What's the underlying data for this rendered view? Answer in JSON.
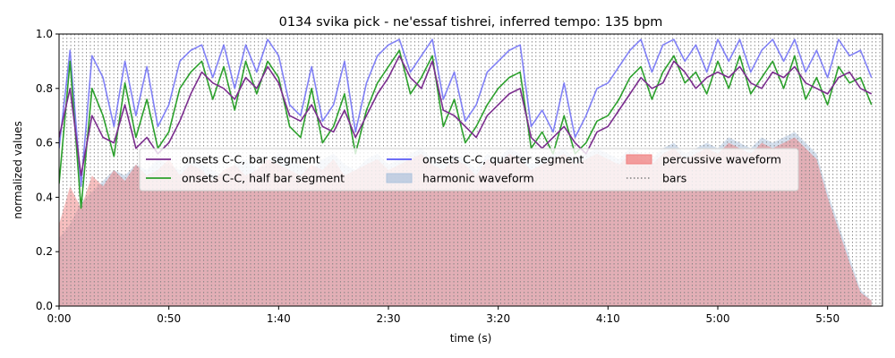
{
  "chart_data": {
    "type": "line",
    "title": "0134 svika pick - ne'essaf tishrei, inferred tempo: 135 bpm",
    "xlabel": "time (s)",
    "ylabel": "normalized values",
    "xlim": [
      0,
      375
    ],
    "ylim": [
      0,
      1.0
    ],
    "x_ticks": [
      0,
      50,
      100,
      150,
      200,
      250,
      300,
      350
    ],
    "x_tick_labels": [
      "0:00",
      "0:50",
      "1:40",
      "2:30",
      "3:20",
      "4:10",
      "5:00",
      "5:50"
    ],
    "y_ticks": [
      0,
      0.2,
      0.4,
      0.6,
      0.8,
      1.0
    ],
    "y_tick_labels": [
      "0.0",
      "0.2",
      "0.4",
      "0.6",
      "0.8",
      "1.0"
    ],
    "tempo_bpm": 135,
    "bar_period_s": 1.78,
    "legend_position": "center",
    "colors": {
      "bar_segment": "#7b2d8e",
      "half_bar_segment": "#2ca02c",
      "quarter_segment": "#5a5af5",
      "harmonic_fill": "#b0c4de",
      "percussive_fill": "#f08080",
      "bars": "#808080"
    },
    "series": [
      {
        "name": "onsets C-C, bar segment",
        "x": [
          0,
          5,
          10,
          15,
          20,
          25,
          30,
          35,
          40,
          45,
          50,
          55,
          60,
          65,
          70,
          75,
          80,
          85,
          90,
          95,
          100,
          105,
          110,
          115,
          120,
          125,
          130,
          135,
          140,
          145,
          150,
          155,
          160,
          165,
          170,
          175,
          180,
          185,
          190,
          195,
          200,
          205,
          210,
          215,
          220,
          225,
          230,
          235,
          240,
          245,
          250,
          255,
          260,
          265,
          270,
          275,
          280,
          285,
          290,
          295,
          300,
          305,
          310,
          315,
          320,
          325,
          330,
          335,
          340,
          345,
          350,
          355,
          360,
          365,
          370
        ],
        "values": [
          0.62,
          0.8,
          0.48,
          0.7,
          0.62,
          0.6,
          0.74,
          0.58,
          0.62,
          0.56,
          0.6,
          0.68,
          0.78,
          0.86,
          0.82,
          0.8,
          0.76,
          0.84,
          0.8,
          0.88,
          0.82,
          0.7,
          0.68,
          0.74,
          0.66,
          0.64,
          0.72,
          0.62,
          0.7,
          0.78,
          0.84,
          0.92,
          0.84,
          0.8,
          0.9,
          0.72,
          0.7,
          0.66,
          0.62,
          0.7,
          0.74,
          0.78,
          0.8,
          0.62,
          0.58,
          0.62,
          0.66,
          0.6,
          0.56,
          0.64,
          0.66,
          0.72,
          0.78,
          0.84,
          0.8,
          0.82,
          0.9,
          0.86,
          0.8,
          0.84,
          0.86,
          0.84,
          0.88,
          0.82,
          0.8,
          0.86,
          0.84,
          0.88,
          0.82,
          0.8,
          0.78,
          0.84,
          0.86,
          0.8,
          0.78
        ]
      },
      {
        "name": "onsets C-C, half bar segment",
        "x": [
          0,
          5,
          10,
          15,
          20,
          25,
          30,
          35,
          40,
          45,
          50,
          55,
          60,
          65,
          70,
          75,
          80,
          85,
          90,
          95,
          100,
          105,
          110,
          115,
          120,
          125,
          130,
          135,
          140,
          145,
          150,
          155,
          160,
          165,
          170,
          175,
          180,
          185,
          190,
          195,
          200,
          205,
          210,
          215,
          220,
          225,
          230,
          235,
          240,
          245,
          250,
          255,
          260,
          265,
          270,
          275,
          280,
          285,
          290,
          295,
          300,
          305,
          310,
          315,
          320,
          325,
          330,
          335,
          340,
          345,
          350,
          355,
          360,
          365,
          370
        ],
        "values": [
          0.45,
          0.9,
          0.36,
          0.8,
          0.7,
          0.55,
          0.82,
          0.62,
          0.76,
          0.58,
          0.64,
          0.8,
          0.86,
          0.9,
          0.76,
          0.88,
          0.72,
          0.9,
          0.78,
          0.9,
          0.84,
          0.66,
          0.62,
          0.8,
          0.6,
          0.66,
          0.78,
          0.56,
          0.72,
          0.82,
          0.88,
          0.94,
          0.78,
          0.84,
          0.92,
          0.66,
          0.76,
          0.6,
          0.66,
          0.74,
          0.8,
          0.84,
          0.86,
          0.58,
          0.64,
          0.56,
          0.7,
          0.56,
          0.6,
          0.68,
          0.7,
          0.76,
          0.84,
          0.88,
          0.76,
          0.86,
          0.92,
          0.82,
          0.86,
          0.78,
          0.9,
          0.8,
          0.92,
          0.78,
          0.84,
          0.9,
          0.8,
          0.92,
          0.76,
          0.84,
          0.74,
          0.88,
          0.82,
          0.84,
          0.74
        ]
      },
      {
        "name": "onsets C-C, quarter segment",
        "x": [
          0,
          5,
          10,
          15,
          20,
          25,
          30,
          35,
          40,
          45,
          50,
          55,
          60,
          65,
          70,
          75,
          80,
          85,
          90,
          95,
          100,
          105,
          110,
          115,
          120,
          125,
          130,
          135,
          140,
          145,
          150,
          155,
          160,
          165,
          170,
          175,
          180,
          185,
          190,
          195,
          200,
          205,
          210,
          215,
          220,
          225,
          230,
          235,
          240,
          245,
          250,
          255,
          260,
          265,
          270,
          275,
          280,
          285,
          290,
          295,
          300,
          305,
          310,
          315,
          320,
          325,
          330,
          335,
          340,
          345,
          350,
          355,
          360,
          365,
          370
        ],
        "values": [
          0.58,
          0.94,
          0.44,
          0.92,
          0.84,
          0.66,
          0.9,
          0.7,
          0.88,
          0.66,
          0.74,
          0.9,
          0.94,
          0.96,
          0.84,
          0.96,
          0.8,
          0.96,
          0.86,
          0.98,
          0.92,
          0.74,
          0.7,
          0.88,
          0.68,
          0.74,
          0.9,
          0.64,
          0.82,
          0.92,
          0.96,
          0.98,
          0.86,
          0.92,
          0.98,
          0.76,
          0.86,
          0.68,
          0.74,
          0.86,
          0.9,
          0.94,
          0.96,
          0.66,
          0.72,
          0.64,
          0.82,
          0.62,
          0.7,
          0.8,
          0.82,
          0.88,
          0.94,
          0.98,
          0.86,
          0.96,
          0.98,
          0.9,
          0.96,
          0.86,
          0.98,
          0.9,
          0.98,
          0.86,
          0.94,
          0.98,
          0.9,
          0.98,
          0.86,
          0.94,
          0.84,
          0.98,
          0.92,
          0.94,
          0.84
        ]
      },
      {
        "name": "harmonic waveform",
        "x": [
          0,
          5,
          10,
          15,
          20,
          25,
          30,
          35,
          40,
          45,
          50,
          55,
          60,
          65,
          70,
          75,
          80,
          85,
          90,
          95,
          100,
          105,
          110,
          115,
          120,
          125,
          130,
          135,
          140,
          145,
          150,
          155,
          160,
          165,
          170,
          175,
          180,
          185,
          190,
          195,
          200,
          205,
          210,
          215,
          220,
          225,
          230,
          235,
          240,
          245,
          250,
          255,
          260,
          265,
          270,
          275,
          280,
          285,
          290,
          295,
          300,
          305,
          310,
          315,
          320,
          325,
          330,
          335,
          340,
          345,
          350,
          355,
          360,
          365,
          370
        ],
        "values": [
          0.25,
          0.3,
          0.38,
          0.42,
          0.46,
          0.5,
          0.48,
          0.52,
          0.5,
          0.54,
          0.52,
          0.5,
          0.54,
          0.52,
          0.5,
          0.48,
          0.52,
          0.54,
          0.5,
          0.52,
          0.56,
          0.54,
          0.52,
          0.5,
          0.54,
          0.56,
          0.52,
          0.5,
          0.54,
          0.56,
          0.52,
          0.54,
          0.56,
          0.58,
          0.54,
          0.52,
          0.56,
          0.54,
          0.5,
          0.56,
          0.54,
          0.58,
          0.56,
          0.52,
          0.54,
          0.56,
          0.58,
          0.54,
          0.56,
          0.58,
          0.56,
          0.54,
          0.58,
          0.56,
          0.54,
          0.58,
          0.6,
          0.56,
          0.58,
          0.6,
          0.58,
          0.62,
          0.6,
          0.58,
          0.62,
          0.6,
          0.62,
          0.64,
          0.6,
          0.56,
          0.42,
          0.3,
          0.18,
          0.06,
          0.02
        ]
      },
      {
        "name": "percussive waveform",
        "x": [
          0,
          5,
          10,
          15,
          20,
          25,
          30,
          35,
          40,
          45,
          50,
          55,
          60,
          65,
          70,
          75,
          80,
          85,
          90,
          95,
          100,
          105,
          110,
          115,
          120,
          125,
          130,
          135,
          140,
          145,
          150,
          155,
          160,
          165,
          170,
          175,
          180,
          185,
          190,
          195,
          200,
          205,
          210,
          215,
          220,
          225,
          230,
          235,
          240,
          245,
          250,
          255,
          260,
          265,
          270,
          275,
          280,
          285,
          290,
          295,
          300,
          305,
          310,
          315,
          320,
          325,
          330,
          335,
          340,
          345,
          350,
          355,
          360,
          365,
          370
        ],
        "values": [
          0.3,
          0.44,
          0.36,
          0.48,
          0.44,
          0.5,
          0.46,
          0.52,
          0.48,
          0.5,
          0.54,
          0.48,
          0.52,
          0.5,
          0.46,
          0.5,
          0.52,
          0.48,
          0.5,
          0.54,
          0.52,
          0.5,
          0.48,
          0.52,
          0.5,
          0.54,
          0.48,
          0.5,
          0.52,
          0.54,
          0.5,
          0.52,
          0.54,
          0.56,
          0.52,
          0.5,
          0.54,
          0.52,
          0.48,
          0.54,
          0.52,
          0.56,
          0.54,
          0.5,
          0.52,
          0.54,
          0.56,
          0.52,
          0.54,
          0.56,
          0.54,
          0.52,
          0.56,
          0.54,
          0.52,
          0.56,
          0.58,
          0.54,
          0.56,
          0.58,
          0.56,
          0.6,
          0.58,
          0.56,
          0.6,
          0.58,
          0.6,
          0.62,
          0.58,
          0.54,
          0.4,
          0.28,
          0.16,
          0.05,
          0.02
        ]
      }
    ],
    "bars_legend": "bars"
  }
}
